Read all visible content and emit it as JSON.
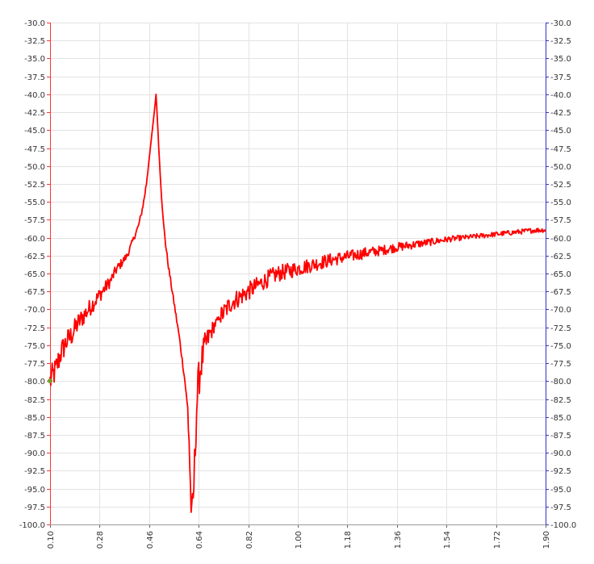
{
  "chart_data": {
    "type": "line",
    "title": "",
    "xlabel": "",
    "ylabel": "",
    "xlim": [
      0.1,
      1.9
    ],
    "ylim": [
      -100.0,
      -30.0
    ],
    "x_ticks": [
      "0.10",
      "0.28",
      "0.46",
      "0.64",
      "0.82",
      "1.00",
      "1.18",
      "1.36",
      "1.54",
      "1.72",
      "1.90"
    ],
    "y_ticks": [
      "-30.0",
      "-32.5",
      "-35.0",
      "-37.5",
      "-40.0",
      "-42.5",
      "-45.0",
      "-47.5",
      "-50.0",
      "-52.5",
      "-55.0",
      "-57.5",
      "-60.0",
      "-62.5",
      "-65.0",
      "-67.5",
      "-70.0",
      "-72.5",
      "-75.0",
      "-77.5",
      "-80.0",
      "-82.5",
      "-85.0",
      "-87.5",
      "-90.0",
      "-92.5",
      "-95.0",
      "-97.5",
      "-100.0"
    ],
    "grid": true,
    "colors": {
      "series": "#ff0000",
      "left_axis": "#ff3333",
      "right_axis": "#3333cc",
      "grid": "#e3e3e3"
    },
    "series": [
      {
        "x": [
          0.1,
          0.12,
          0.14,
          0.16,
          0.18,
          0.2,
          0.22,
          0.24,
          0.26,
          0.28,
          0.3,
          0.32,
          0.34,
          0.36,
          0.38,
          0.4,
          0.42,
          0.43,
          0.44,
          0.45,
          0.46,
          0.47,
          0.48,
          0.485,
          0.49,
          0.495,
          0.5,
          0.505,
          0.51,
          0.52,
          0.53,
          0.54,
          0.55,
          0.56,
          0.57,
          0.58,
          0.59,
          0.6,
          0.605,
          0.61,
          0.615,
          0.62,
          0.625,
          0.63,
          0.635,
          0.64,
          0.645,
          0.65,
          0.66,
          0.67,
          0.68,
          0.7,
          0.72,
          0.74,
          0.76,
          0.78,
          0.8,
          0.82,
          0.84,
          0.86,
          0.88,
          0.9,
          0.93,
          0.96,
          1.0,
          1.04,
          1.08,
          1.12,
          1.16,
          1.2,
          1.25,
          1.3,
          1.35,
          1.4,
          1.45,
          1.5,
          1.55,
          1.6,
          1.65,
          1.7,
          1.75,
          1.8,
          1.85,
          1.9
        ],
        "y": [
          -80.0,
          -78.5,
          -76.0,
          -74.5,
          -73.5,
          -72.0,
          -71.0,
          -70.0,
          -69.0,
          -68.0,
          -67.0,
          -66.0,
          -64.5,
          -63.5,
          -62.5,
          -60.5,
          -58.5,
          -57.0,
          -55.0,
          -52.5,
          -49.0,
          -45.5,
          -42.0,
          -40.0,
          -43.5,
          -47.5,
          -51.0,
          -54.5,
          -57.0,
          -61.0,
          -64.0,
          -66.5,
          -69.0,
          -71.5,
          -74.0,
          -77.0,
          -80.0,
          -84.0,
          -88.0,
          -95.0,
          -99.5,
          -97.0,
          -92.0,
          -86.0,
          -82.0,
          -80.0,
          -78.5,
          -77.5,
          -75.5,
          -74.5,
          -73.5,
          -72.0,
          -71.0,
          -70.0,
          -69.0,
          -68.5,
          -68.0,
          -67.5,
          -67.0,
          -66.5,
          -66.0,
          -65.5,
          -65.0,
          -64.7,
          -64.3,
          -63.9,
          -63.5,
          -63.1,
          -62.8,
          -62.5,
          -62.1,
          -61.8,
          -61.4,
          -61.1,
          -60.8,
          -60.5,
          -60.2,
          -60.0,
          -59.8,
          -59.6,
          -59.4,
          -59.2,
          -59.0,
          -58.9
        ]
      }
    ]
  }
}
